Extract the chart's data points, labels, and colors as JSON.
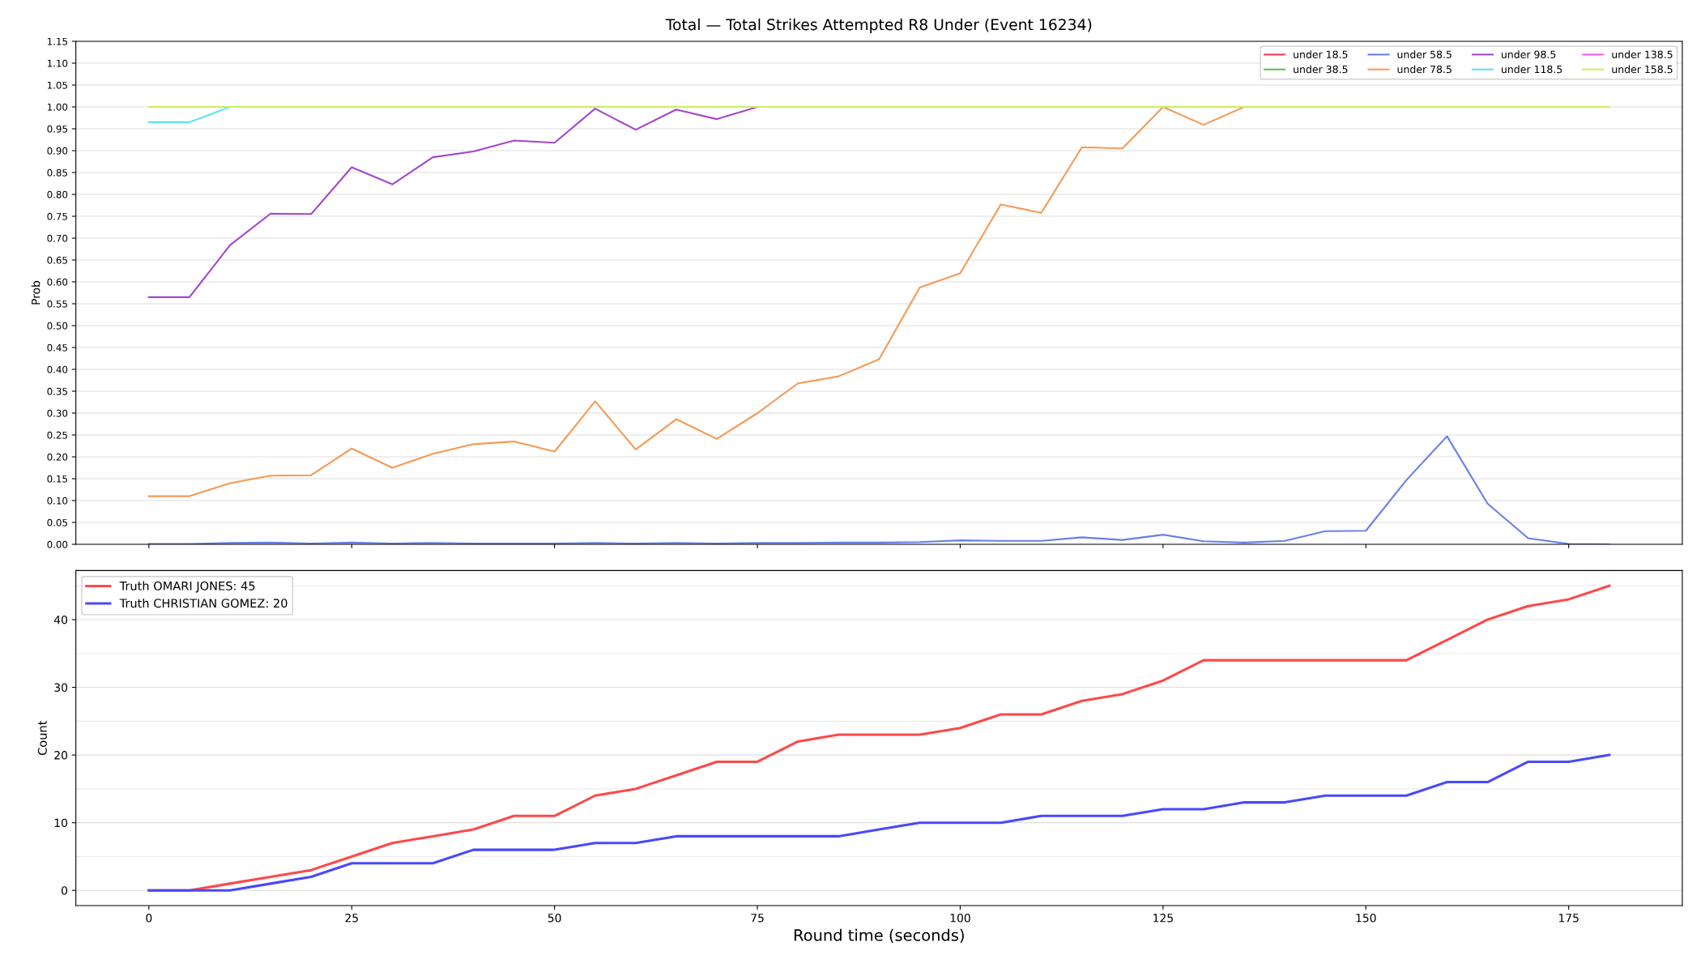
{
  "chart_data": [
    {
      "type": "line",
      "title": "Total — Total Strikes Attempted R8 Under (Event 16234)",
      "ylabel": "Prob",
      "x": [
        0,
        5,
        10,
        15,
        20,
        25,
        30,
        35,
        40,
        45,
        50,
        55,
        60,
        65,
        70,
        75,
        80,
        85,
        90,
        95,
        100,
        105,
        110,
        115,
        120,
        125,
        130,
        135,
        140,
        145,
        150,
        155,
        160,
        165,
        170,
        175,
        180
      ],
      "xlim": [
        -9,
        189
      ],
      "xticks": [
        0,
        25,
        50,
        75,
        100,
        125,
        150,
        175
      ],
      "ylim": [
        0,
        1.15
      ],
      "yticks": [
        {
          "value": 0,
          "label": "0.00"
        },
        {
          "value": 0.05,
          "label": "0.05"
        },
        {
          "value": 0.1,
          "label": "0.10"
        },
        {
          "value": 0.15,
          "label": "0.15"
        },
        {
          "value": 0.2,
          "label": "0.20"
        },
        {
          "value": 0.25,
          "label": "0.25"
        },
        {
          "value": 0.3,
          "label": "0.30"
        },
        {
          "value": 0.35,
          "label": "0.35"
        },
        {
          "value": 0.4,
          "label": "0.40"
        },
        {
          "value": 0.45,
          "label": "0.45"
        },
        {
          "value": 0.5,
          "label": "0.50"
        },
        {
          "value": 0.55,
          "label": "0.55"
        },
        {
          "value": 0.6,
          "label": "0.60"
        },
        {
          "value": 0.65,
          "label": "0.65"
        },
        {
          "value": 0.7,
          "label": "0.70"
        },
        {
          "value": 0.75,
          "label": "0.75"
        },
        {
          "value": 0.8,
          "label": "0.80"
        },
        {
          "value": 0.85,
          "label": "0.85"
        },
        {
          "value": 0.9,
          "label": "0.90"
        },
        {
          "value": 0.95,
          "label": "0.95"
        },
        {
          "value": 1.0,
          "label": "1.00"
        },
        {
          "value": 1.05,
          "label": "1.05"
        },
        {
          "value": 1.1,
          "label": "1.10"
        },
        {
          "value": 1.15,
          "label": "1.15"
        }
      ],
      "tick_labels": "y",
      "grid": "y",
      "legend": "top right",
      "series": [
        {
          "name": "under 18.5",
          "color": "#e6405a",
          "values": [
            null,
            null,
            null,
            null,
            null,
            null,
            null,
            null,
            null,
            null,
            null,
            null,
            null,
            null,
            null,
            null,
            null,
            null,
            null,
            null,
            null,
            null,
            null,
            null,
            null,
            null,
            null,
            null,
            null,
            null,
            null,
            null,
            null,
            null,
            null,
            null,
            null
          ]
        },
        {
          "name": "under 38.5",
          "color": "#5cbf5c",
          "values": [
            null,
            null,
            null,
            null,
            null,
            null,
            null,
            null,
            null,
            null,
            null,
            null,
            null,
            null,
            null,
            null,
            null,
            null,
            null,
            null,
            null,
            null,
            null,
            null,
            null,
            null,
            null,
            null,
            null,
            null,
            null,
            null,
            null,
            null,
            null,
            null,
            null
          ]
        },
        {
          "name": "under 58.5",
          "color": "#6580e6",
          "values": [
            0.001,
            0.001,
            0.003,
            0.004,
            0.002,
            0.004,
            0.002,
            0.003,
            0.002,
            0.002,
            0.002,
            0.003,
            0.002,
            0.003,
            0.002,
            0.003,
            0.003,
            0.004,
            0.004,
            0.005,
            0.009,
            0.008,
            0.008,
            0.016,
            0.01,
            0.022,
            0.007,
            0.004,
            0.008,
            0.03,
            0.031,
            0.147,
            0.247,
            0.093,
            0.014,
            0.001,
            0.0
          ]
        },
        {
          "name": "under 78.5",
          "color": "#f59a55",
          "values": [
            0.11,
            0.11,
            0.14,
            0.157,
            0.158,
            0.219,
            0.175,
            0.207,
            0.229,
            0.235,
            0.212,
            0.327,
            0.217,
            0.286,
            0.241,
            0.3,
            0.368,
            0.384,
            0.423,
            0.587,
            0.62,
            0.777,
            0.758,
            0.908,
            0.905,
            1.0,
            0.959,
            1.0,
            null,
            null,
            null,
            null,
            null,
            null,
            null,
            null,
            null
          ]
        },
        {
          "name": "under 98.5",
          "color": "#a347cc",
          "values": [
            0.565,
            0.565,
            0.684,
            0.756,
            0.755,
            0.862,
            0.823,
            0.885,
            0.898,
            0.923,
            0.918,
            0.996,
            0.948,
            0.994,
            0.972,
            1.0,
            null,
            null,
            null,
            null,
            null,
            null,
            null,
            null,
            null,
            null,
            null,
            null,
            null,
            null,
            null,
            null,
            null,
            null,
            null,
            null,
            null
          ]
        },
        {
          "name": "under 118.5",
          "color": "#5ce1f5",
          "values": [
            0.965,
            0.965,
            1.0,
            null,
            null,
            null,
            null,
            null,
            null,
            null,
            null,
            null,
            null,
            null,
            null,
            null,
            null,
            null,
            null,
            null,
            null,
            null,
            null,
            null,
            null,
            null,
            null,
            null,
            null,
            null,
            null,
            null,
            null,
            null,
            null,
            null,
            null
          ]
        },
        {
          "name": "under 138.5",
          "color": "#f55ef0",
          "values": [
            null,
            null,
            null,
            null,
            null,
            null,
            null,
            null,
            null,
            null,
            null,
            null,
            null,
            null,
            null,
            null,
            null,
            null,
            null,
            null,
            null,
            null,
            null,
            null,
            null,
            null,
            null,
            null,
            null,
            null,
            null,
            null,
            null,
            null,
            null,
            null,
            null
          ]
        },
        {
          "name": "under 158.5",
          "color": "#c9ef5e",
          "values": [
            1.0,
            1.0,
            1.0,
            1.0,
            1.0,
            1.0,
            1.0,
            1.0,
            1.0,
            1.0,
            1.0,
            1.0,
            1.0,
            1.0,
            1.0,
            1.0,
            1.0,
            1.0,
            1.0,
            1.0,
            1.0,
            1.0,
            1.0,
            1.0,
            1.0,
            1.0,
            1.0,
            1.0,
            1.0,
            1.0,
            1.0,
            1.0,
            1.0,
            1.0,
            1.0,
            1.0,
            1.0
          ]
        }
      ]
    },
    {
      "type": "line",
      "xlabel": "Round time (seconds)",
      "ylabel": "Count",
      "x": [
        0,
        5,
        10,
        15,
        20,
        25,
        30,
        35,
        40,
        45,
        50,
        55,
        60,
        65,
        70,
        75,
        80,
        85,
        90,
        95,
        100,
        105,
        110,
        115,
        120,
        125,
        130,
        135,
        140,
        145,
        150,
        155,
        160,
        165,
        170,
        175,
        180
      ],
      "xlim": [
        -9,
        189
      ],
      "xticks": [
        0,
        25,
        50,
        75,
        100,
        125,
        150,
        175
      ],
      "ylim": [
        -2.25,
        47.25
      ],
      "yticks": [
        0,
        {
          "value": 5,
          "label": null
        },
        10,
        {
          "value": 15,
          "label": null
        },
        20,
        {
          "value": 25,
          "label": null
        },
        30,
        {
          "value": 35,
          "label": null
        },
        40,
        {
          "value": 45,
          "label": null
        }
      ],
      "grid": "y",
      "legend": "top left",
      "series": [
        {
          "name": "Truth OMARI JONES: 45",
          "color": "#ff4848",
          "values": [
            0,
            0,
            1,
            2,
            3,
            5,
            7,
            8,
            9,
            11,
            11,
            14,
            15,
            17,
            19,
            19,
            22,
            23,
            23,
            23,
            24,
            26,
            26,
            28,
            29,
            31,
            34,
            34,
            34,
            34,
            34,
            34,
            37,
            40,
            42,
            43,
            45
          ]
        },
        {
          "name": "Truth CHRISTIAN GOMEZ: 20",
          "color": "#4848ff",
          "values": [
            0,
            0,
            0,
            1,
            2,
            4,
            4,
            4,
            6,
            6,
            6,
            7,
            7,
            8,
            8,
            8,
            8,
            8,
            9,
            10,
            10,
            10,
            11,
            11,
            11,
            12,
            12,
            13,
            13,
            14,
            14,
            14,
            16,
            16,
            19,
            19,
            20
          ]
        }
      ]
    }
  ]
}
